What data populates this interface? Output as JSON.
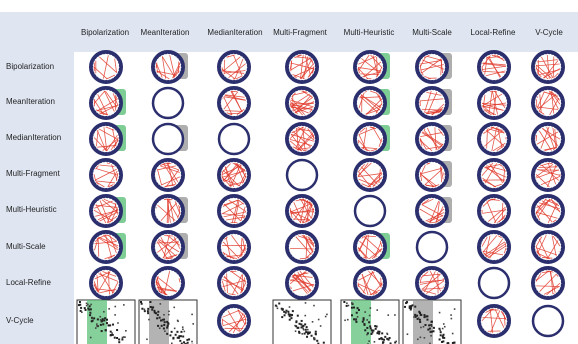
{
  "columns": [
    "Bipolarization",
    "MeanIteration",
    "MedianIteration",
    "Multi-Fragment",
    "Multi-Heuristic",
    "Multi-Scale",
    "Local-Refine",
    "V-Cycle"
  ],
  "rows": [
    "Bipolarization",
    "MeanIteration",
    "MedianIteration",
    "Multi-Fragment",
    "Multi-Heuristic",
    "Multi-Scale",
    "Local-Refine",
    "V-Cycle"
  ],
  "colors": {
    "band": "#dfe6f2",
    "ring": "#2c2f6e",
    "chord": "#e0392b",
    "highlight_green": "#5cc07a",
    "highlight_gray": "#9a9a9a"
  },
  "cells": [
    [
      "ring-sparse",
      "ring-gray",
      "ring",
      "ring-dense",
      "ring-green",
      "ring-gray",
      "ring",
      "ring"
    ],
    [
      "ring-green",
      "ring-empty",
      "ring",
      "ring-dense",
      "ring-green",
      "ring-gray",
      "ring",
      "ring"
    ],
    [
      "ring-green",
      "ring-gray-empty",
      "ring-empty",
      "ring-dense",
      "ring-green",
      "ring-gray",
      "ring",
      "ring"
    ],
    [
      "ring",
      "ring",
      "ring-dense",
      "ring-empty",
      "ring",
      "ring-gray",
      "ring",
      "ring"
    ],
    [
      "ring-green",
      "ring-gray",
      "ring",
      "ring-dense",
      "ring-empty",
      "ring-gray",
      "ring",
      "ring"
    ],
    [
      "ring-green",
      "ring-gray",
      "ring",
      "ring",
      "ring-green",
      "ring-empty",
      "ring",
      "ring"
    ],
    [
      "ring",
      "ring",
      "ring",
      "ring",
      "ring",
      "ring",
      "ring-empty",
      "ring"
    ],
    [
      "matrix-green",
      "matrix-gray",
      "ring",
      "matrix",
      "matrix-green",
      "matrix-gray",
      "ring",
      "ring-empty"
    ]
  ]
}
